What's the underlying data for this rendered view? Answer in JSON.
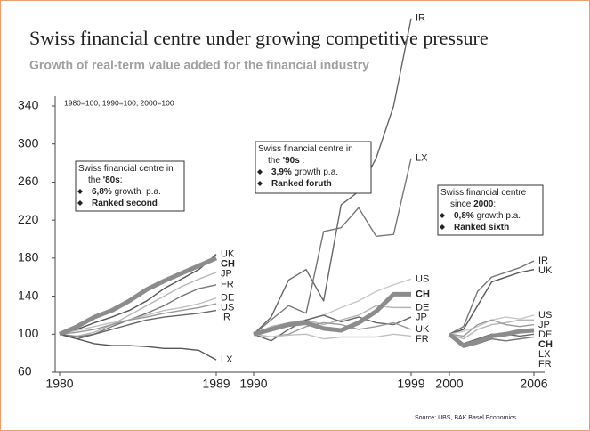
{
  "chart_data": {
    "type": "line",
    "title": "Swiss financial centre under growing competitive pressure",
    "subtitle": "Growth of real-term value added for the financial industry",
    "note": "1980=100, 1990=100, 2000=100",
    "source": "Source: UBS, BAK Basel Economics",
    "ylim": [
      60,
      340
    ],
    "yticks": [
      60,
      100,
      140,
      180,
      220,
      260,
      300,
      340
    ],
    "panels": [
      {
        "x": [
          1980,
          1981,
          1982,
          1983,
          1984,
          1985,
          1986,
          1987,
          1988,
          1989
        ],
        "xlim": [
          1980,
          1989
        ],
        "xticks": [
          1980,
          1989
        ],
        "box": [
          {
            "parts": [
              {
                "text": "Swiss financial centre in"
              }
            ]
          },
          {
            "parts": [
              {
                "text": "the "
              },
              {
                "text": "'80s",
                "bold": true
              },
              {
                "text": ":"
              }
            ]
          },
          {
            "bullet": true,
            "parts": [
              {
                "text": "6,8%",
                "bold": true
              },
              {
                "text": " growth  p.a."
              }
            ]
          },
          {
            "bullet": true,
            "parts": [
              {
                "text": "Ranked second",
                "bold": true
              }
            ]
          }
        ],
        "series": [
          {
            "name": "UK",
            "color": "#555555",
            "values": [
              100,
              105,
              112,
              118,
              125,
              135,
              148,
              158,
              168,
              184
            ]
          },
          {
            "name": "CH",
            "color": "#8c8c8c",
            "highlight": true,
            "values": [
              100,
              108,
              118,
              125,
              135,
              147,
              156,
              164,
              172,
              180
            ]
          },
          {
            "name": "JP",
            "color": "#b5b5b5",
            "values": [
              100,
              98,
              102,
              110,
              120,
              130,
              140,
              150,
              158,
              165
            ]
          },
          {
            "name": "FR",
            "color": "#777777",
            "values": [
              100,
              97,
              100,
              108,
              115,
              122,
              130,
              140,
              148,
              152
            ]
          },
          {
            "name": "DE",
            "color": "#c0c0c0",
            "values": [
              100,
              104,
              108,
              112,
              115,
              120,
              125,
              128,
              132,
              138
            ]
          },
          {
            "name": "US",
            "color": "#999999",
            "values": [
              100,
              102,
              105,
              110,
              115,
              118,
              122,
              125,
              128,
              132
            ]
          },
          {
            "name": "IR",
            "color": "#666666",
            "values": [
              100,
              95,
              100,
              105,
              110,
              115,
              118,
              120,
              122,
              125
            ]
          },
          {
            "name": "LX",
            "color": "#555555",
            "values": [
              100,
              95,
              90,
              88,
              88,
              87,
              85,
              85,
              83,
              73
            ]
          }
        ]
      },
      {
        "x": [
          1990,
          1991,
          1992,
          1993,
          1994,
          1995,
          1996,
          1997,
          1998,
          1999
        ],
        "xlim": [
          1990,
          1999
        ],
        "xticks": [
          1990,
          1999
        ],
        "box": [
          {
            "parts": [
              {
                "text": "Swiss financial centre in"
              }
            ]
          },
          {
            "parts": [
              {
                "text": "the "
              },
              {
                "text": "'90s",
                "bold": true
              },
              {
                "text": " :"
              }
            ]
          },
          {
            "bullet": true,
            "parts": [
              {
                "text": "3,9%",
                "bold": true
              },
              {
                "text": " growth p.a."
              }
            ]
          },
          {
            "bullet": true,
            "parts": [
              {
                "text": "Ranked foruth",
                "bold": true
              }
            ]
          }
        ],
        "series": [
          {
            "name": "IR",
            "color": "#666666",
            "values": [
              100,
              118,
              157,
              168,
              135,
              236,
              250,
              285,
              340,
              432
            ]
          },
          {
            "name": "LX",
            "color": "#777777",
            "values": [
              100,
              115,
              130,
              122,
              208,
              212,
              233,
              203,
              205,
              285
            ]
          },
          {
            "name": "US",
            "color": "#c8c8c8",
            "values": [
              100,
              105,
              110,
              115,
              120,
              128,
              135,
              145,
              152,
              158
            ]
          },
          {
            "name": "CH",
            "color": "#8c8c8c",
            "highlight": true,
            "values": [
              100,
              105,
              110,
              112,
              106,
              104,
              112,
              124,
              142,
              142
            ]
          },
          {
            "name": "DE",
            "color": "#b5b5b5",
            "values": [
              100,
              108,
              112,
              115,
              110,
              115,
              120,
              130,
              128,
              128
            ]
          },
          {
            "name": "JP",
            "color": "#666666",
            "values": [
              100,
              93,
              105,
              115,
              120,
              113,
              118,
              112,
              110,
              118
            ]
          },
          {
            "name": "UK",
            "color": "#999999",
            "values": [
              100,
              97,
              100,
              108,
              112,
              110,
              105,
              108,
              112,
              105
            ]
          },
          {
            "name": "FR",
            "color": "#c0c0c0",
            "values": [
              100,
              97,
              99,
              100,
              95,
              97,
              97,
              97,
              100,
              98
            ]
          }
        ]
      },
      {
        "x": [
          2000,
          2001,
          2002,
          2003,
          2004,
          2005,
          2006
        ],
        "xlim": [
          2000,
          2006
        ],
        "xticks": [
          2000,
          2006
        ],
        "box": [
          {
            "parts": [
              {
                "text": "Swiss financial centre"
              }
            ]
          },
          {
            "parts": [
              {
                "text": "since "
              },
              {
                "text": "2000",
                "bold": true
              },
              {
                "text": ":"
              }
            ]
          },
          {
            "bullet": true,
            "parts": [
              {
                "text": "0,8%",
                "bold": true
              },
              {
                "text": " growth p.a."
              }
            ]
          },
          {
            "bullet": true,
            "parts": [
              {
                "text": "Ranked sixth",
                "bold": true
              }
            ]
          }
        ],
        "series": [
          {
            "name": "IR",
            "color": "#777777",
            "values": [
              100,
              108,
              145,
              160,
              165,
              170,
              177
            ]
          },
          {
            "name": "UK",
            "color": "#555555",
            "values": [
              100,
              105,
              130,
              155,
              160,
              165,
              168
            ]
          },
          {
            "name": "US",
            "color": "#c8c8c8",
            "values": [
              100,
              103,
              108,
              115,
              118,
              116,
              120
            ]
          },
          {
            "name": "JP",
            "color": "#b5b5b5",
            "values": [
              100,
              95,
              105,
              110,
              112,
              115,
              115
            ]
          },
          {
            "name": "DE",
            "color": "#999999",
            "values": [
              100,
              98,
              110,
              115,
              110,
              108,
              110
            ]
          },
          {
            "name": "CH",
            "color": "#8c8c8c",
            "highlight": true,
            "values": [
              100,
              88,
              92,
              98,
              100,
              103,
              104
            ]
          },
          {
            "name": "LX",
            "color": "#666666",
            "values": [
              100,
              90,
              95,
              100,
              100,
              98,
              100
            ]
          },
          {
            "name": "FR",
            "color": "#777777",
            "values": [
              100,
              86,
              90,
              95,
              93,
              95,
              97
            ]
          }
        ]
      }
    ]
  }
}
